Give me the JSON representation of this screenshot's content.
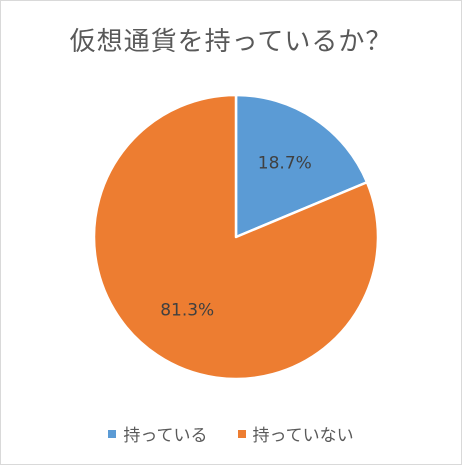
{
  "chart_data": {
    "type": "pie",
    "title": "仮想通貨を持っているか？",
    "categories": [
      "持っている",
      "持っていない"
    ],
    "values": [
      18.7,
      81.3
    ],
    "value_labels": [
      "18.7%",
      "81.3%"
    ],
    "colors": [
      "#5b9bd5",
      "#ed7d31"
    ],
    "start_angle_deg": 0,
    "direction": "clockwise",
    "legend_position": "bottom"
  }
}
